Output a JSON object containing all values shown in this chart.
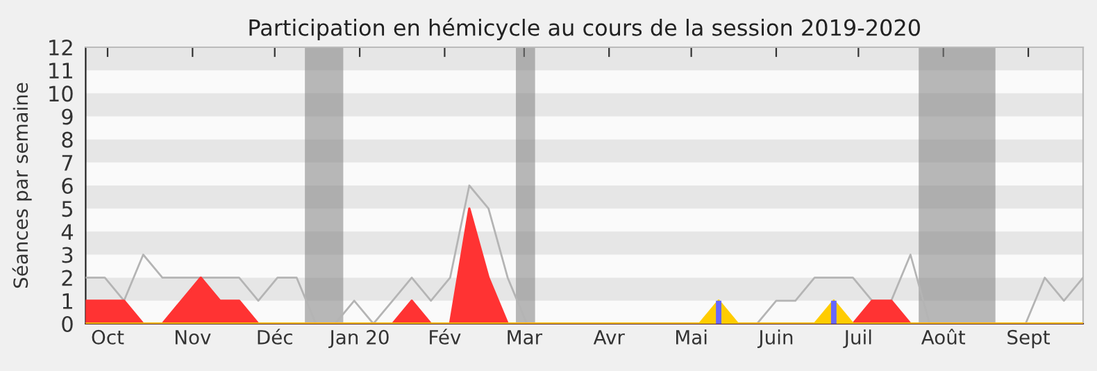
{
  "chart_data": {
    "type": "area",
    "title": "Participation en hémicycle au cours de la session 2019-2020",
    "ylabel": "Séances par semaine",
    "x": [
      "2019-09-23",
      "2019-09-30",
      "2019-10-07",
      "2019-10-14",
      "2019-10-21",
      "2019-10-28",
      "2019-11-04",
      "2019-11-11",
      "2019-11-18",
      "2019-11-25",
      "2019-12-02",
      "2019-12-09",
      "2019-12-16",
      "2019-12-23",
      "2019-12-30",
      "2020-01-06",
      "2020-01-13",
      "2020-01-20",
      "2020-01-27",
      "2020-02-03",
      "2020-02-10",
      "2020-02-17",
      "2020-02-24",
      "2020-03-02",
      "2020-03-09",
      "2020-03-16",
      "2020-03-23",
      "2020-03-30",
      "2020-04-06",
      "2020-04-13",
      "2020-04-20",
      "2020-04-27",
      "2020-05-04",
      "2020-05-11",
      "2020-05-18",
      "2020-05-25",
      "2020-06-01",
      "2020-06-08",
      "2020-06-15",
      "2020-06-22",
      "2020-06-29",
      "2020-07-06",
      "2020-07-13",
      "2020-07-20",
      "2020-07-27",
      "2020-08-03",
      "2020-08-10",
      "2020-08-17",
      "2020-08-24",
      "2020-08-31",
      "2020-09-07",
      "2020-09-14",
      "2020-09-21"
    ],
    "series": [
      {
        "type": "line",
        "color": "#b4b4b4",
        "values": [
          2,
          2,
          1,
          3,
          2,
          2,
          2,
          2,
          2,
          1,
          2,
          2,
          0,
          0,
          1,
          0,
          1,
          2,
          1,
          2,
          6,
          5,
          2,
          0,
          null,
          null,
          null,
          null,
          null,
          null,
          null,
          null,
          null,
          null,
          null,
          0,
          1,
          1,
          2,
          2,
          2,
          1,
          1,
          3,
          0,
          0,
          0,
          0,
          0,
          0,
          2,
          1,
          2
        ]
      },
      {
        "color": "#ff3333",
        "values": [
          1,
          1,
          1,
          0,
          0,
          1,
          2,
          1,
          1,
          0,
          0,
          0,
          0,
          0,
          0,
          0,
          0,
          1,
          0,
          0,
          5,
          2,
          0,
          0,
          0,
          0,
          0,
          0,
          0,
          0,
          0,
          0,
          0,
          0,
          0,
          0,
          0,
          0,
          0,
          0,
          0,
          1,
          1,
          0,
          0,
          0,
          0,
          0,
          0,
          0,
          0,
          0,
          0
        ]
      },
      {
        "color": "#ffcc00",
        "values": [
          0,
          0,
          0,
          0,
          0,
          0,
          0,
          0,
          0,
          0,
          0,
          0,
          0,
          0,
          0,
          0,
          0,
          0,
          0,
          0,
          0,
          0,
          0,
          0,
          0,
          0,
          0,
          0,
          0,
          0,
          0,
          0,
          0,
          1,
          0,
          0,
          0,
          0,
          0,
          1,
          0,
          0,
          0,
          0,
          0,
          0,
          0,
          0,
          0,
          0,
          0,
          0,
          0
        ]
      },
      {
        "type": "bar",
        "color": "#6666ff",
        "values": [
          0,
          0,
          0,
          0,
          0,
          0,
          0,
          0,
          0,
          0,
          0,
          0,
          0,
          0,
          0,
          0,
          0,
          0,
          0,
          0,
          0,
          0,
          0,
          0,
          0,
          0,
          0,
          0,
          0,
          0,
          0,
          0,
          0,
          1,
          0,
          0,
          0,
          0,
          0,
          1,
          0,
          0,
          0,
          0,
          0,
          0,
          0,
          0,
          0,
          0,
          0,
          0,
          0
        ]
      }
    ],
    "xlim": [
      "2019-09-23",
      "2020-09-21"
    ],
    "ylim": [
      0,
      12
    ],
    "yticks": [
      0,
      1,
      2,
      3,
      4,
      5,
      6,
      7,
      8,
      9,
      10,
      11,
      12
    ],
    "xticks": [
      {
        "value": "2019-10-01",
        "label": "Oct"
      },
      {
        "value": "2019-11-01",
        "label": "Nov"
      },
      {
        "value": "2019-12-01",
        "label": "Déc"
      },
      {
        "value": "2020-01-01",
        "label": "Jan 20"
      },
      {
        "value": "2020-02-01",
        "label": "Fév"
      },
      {
        "value": "2020-03-01",
        "label": "Mar"
      },
      {
        "value": "2020-04-01",
        "label": "Avr"
      },
      {
        "value": "2020-05-01",
        "label": "Mai"
      },
      {
        "value": "2020-06-01",
        "label": "Juin"
      },
      {
        "value": "2020-07-01",
        "label": "Juil"
      },
      {
        "value": "2020-08-01",
        "label": "Août"
      },
      {
        "value": "2020-09-01",
        "label": "Sept"
      }
    ],
    "bands": [
      {
        "axis": "y",
        "from": 1,
        "to": 2,
        "color": "#e6e6e6"
      },
      {
        "axis": "y",
        "from": 3,
        "to": 4,
        "color": "#e6e6e6"
      },
      {
        "axis": "y",
        "from": 5,
        "to": 6,
        "color": "#e6e6e6"
      },
      {
        "axis": "y",
        "from": 7,
        "to": 8,
        "color": "#e6e6e6"
      },
      {
        "axis": "y",
        "from": 9,
        "to": 10,
        "color": "#e6e6e6"
      },
      {
        "axis": "y",
        "from": 11,
        "to": 12,
        "color": "#e6e6e6"
      },
      {
        "axis": "x",
        "from": "2019-12-12",
        "to": "2019-12-26",
        "color": "#808080"
      },
      {
        "axis": "x",
        "from": "2020-02-27",
        "to": "2020-03-05",
        "color": "#808080"
      },
      {
        "axis": "x",
        "from": "2020-07-23",
        "to": "2020-08-20",
        "color": "#808080"
      }
    ],
    "grid": false,
    "legend": false
  }
}
